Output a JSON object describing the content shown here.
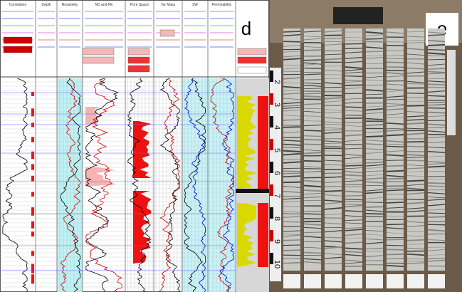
{
  "panels": [
    {
      "label": "d",
      "tracks": [
        "Correlation",
        "Depth",
        "Resistivity",
        "ND and PE",
        "Pore Space",
        "Tar Mass",
        "SW",
        "Permeability"
      ]
    },
    {
      "label": "e",
      "ruler_labels": [
        "2",
        "3",
        "4",
        "5",
        "6",
        "7",
        "8",
        "9",
        "10"
      ]
    }
  ]
}
